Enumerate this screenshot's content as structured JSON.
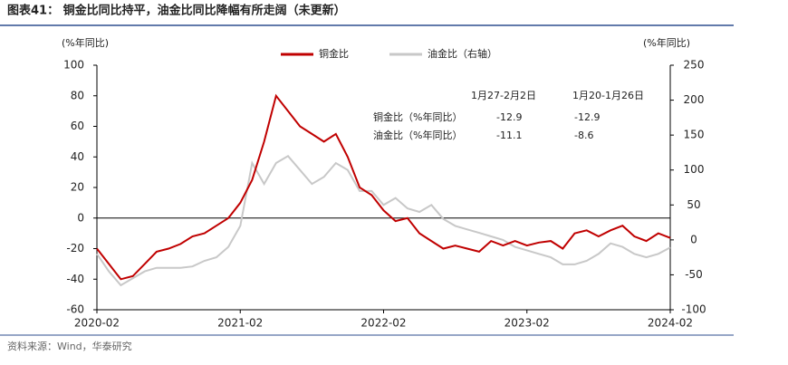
{
  "chart_data": {
    "type": "line",
    "title": "图表41： 铜金比同比持平，油金比同比降幅有所走阔（未更新）",
    "y_label": "(%年同比)",
    "y2_label": "(%年同比)",
    "source": "资料来源：Wind，华泰研究",
    "categories": [
      "2020-02",
      null,
      null,
      null,
      null,
      null,
      null,
      null,
      null,
      null,
      null,
      null,
      "2021-02",
      null,
      null,
      null,
      null,
      null,
      null,
      null,
      null,
      null,
      null,
      null,
      "2022-02",
      null,
      null,
      null,
      null,
      null,
      null,
      null,
      null,
      null,
      null,
      null,
      "2023-02",
      null,
      null,
      null,
      null,
      null,
      null,
      null,
      null,
      null,
      null,
      null,
      "2024-02"
    ],
    "ylim": [
      -60,
      100
    ],
    "yticks": [
      -60,
      -40,
      -20,
      0,
      20,
      40,
      60,
      80,
      100
    ],
    "y2lim": [
      -100,
      250
    ],
    "y2ticks": [
      -100,
      -50,
      0,
      50,
      100,
      150,
      200,
      250
    ],
    "legend": "top",
    "series": [
      {
        "name": "铜金比",
        "color": "#c00000",
        "axis": "y",
        "values": [
          -20,
          -30,
          -40,
          -38,
          -30,
          -22,
          -20,
          -17,
          -12,
          -10,
          -5,
          0,
          10,
          25,
          50,
          80,
          70,
          60,
          55,
          50,
          55,
          40,
          20,
          15,
          5,
          -2,
          0,
          -10,
          -15,
          -20,
          -18,
          -20,
          -22,
          -15,
          -18,
          -15,
          -18,
          -16,
          -15,
          -20,
          -10,
          -8,
          -12,
          -8,
          -5,
          -12,
          -15,
          -10,
          -13
        ]
      },
      {
        "name": "油金比（右轴）",
        "color": "#c8c8c8",
        "axis": "y2",
        "values": [
          -20,
          -45,
          -65,
          -55,
          -45,
          -40,
          -40,
          -40,
          -38,
          -30,
          -25,
          -10,
          20,
          110,
          80,
          110,
          120,
          100,
          80,
          90,
          110,
          100,
          70,
          70,
          50,
          60,
          45,
          40,
          50,
          30,
          20,
          15,
          10,
          5,
          0,
          -10,
          -15,
          -20,
          -25,
          -35,
          -35,
          -30,
          -20,
          -5,
          -10,
          -20,
          -25,
          -20,
          -11
        ]
      }
    ],
    "table": {
      "header": [
        "1月27-2月2日",
        "1月20-1月26日"
      ],
      "rows": [
        [
          "铜金比（%年同比）",
          -12.9,
          -12.9
        ],
        [
          "油金比（%年同比）",
          -11.1,
          -8.6
        ]
      ]
    }
  }
}
